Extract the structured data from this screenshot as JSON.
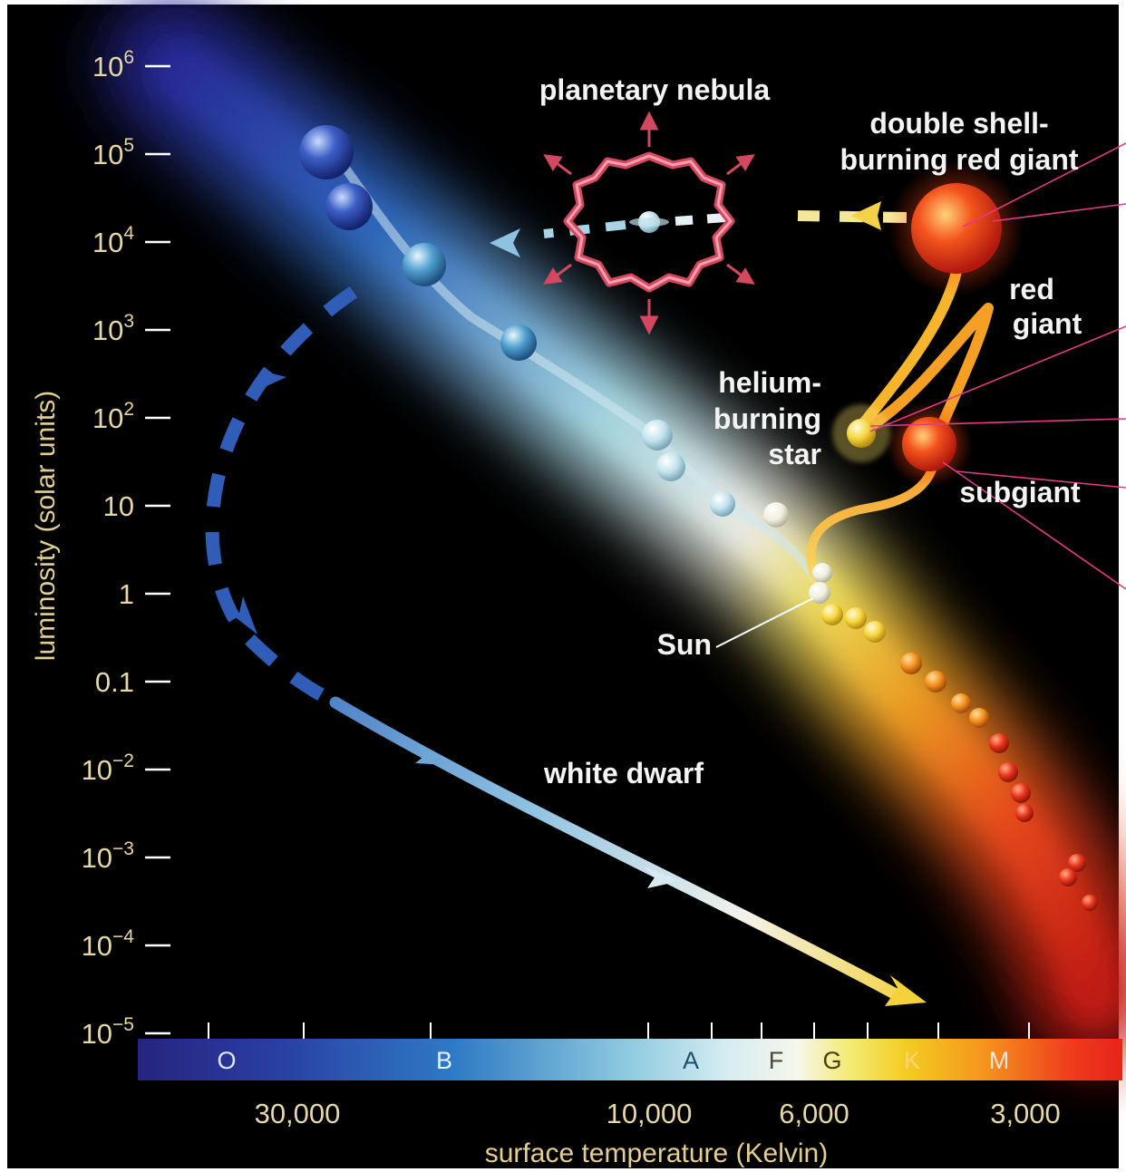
{
  "y_axis": {
    "title": "luminosity (solar units)",
    "ticks": [
      {
        "base": "10",
        "exp": "6"
      },
      {
        "base": "10",
        "exp": "5"
      },
      {
        "base": "10",
        "exp": "4"
      },
      {
        "base": "10",
        "exp": "3"
      },
      {
        "base": "10",
        "exp": "2"
      },
      {
        "base": "10",
        "exp": ""
      },
      {
        "base": "1",
        "exp": ""
      },
      {
        "base": "0.1",
        "exp": ""
      },
      {
        "base": "10",
        "exp": "−2"
      },
      {
        "base": "10",
        "exp": "−3"
      },
      {
        "base": "10",
        "exp": "−4"
      },
      {
        "base": "10",
        "exp": "−5"
      }
    ]
  },
  "x_axis": {
    "title": "surface temperature (Kelvin)",
    "ticks": [
      "30,000",
      "10,000",
      "6,000",
      "3,000"
    ]
  },
  "spectral_classes": [
    "O",
    "B",
    "A",
    "F",
    "G",
    "K",
    "M"
  ],
  "labels": {
    "planetary_nebula": "planetary nebula",
    "double_shell_line1": "double shell-",
    "double_shell_line2": "burning red giant",
    "red_giant_line1": "red",
    "red_giant_line2": "giant",
    "helium_line1": "helium-",
    "helium_line2": "burning",
    "helium_line3": "star",
    "subgiant": "subgiant",
    "sun": "Sun",
    "white_dwarf": "white dwarf"
  },
  "colors": {
    "background": "#000000",
    "axis_text": "#e7d7a6",
    "spectral_O": "#2a2a9a",
    "spectral_B": "#2f78c8",
    "spectral_A": "#bfe3ee",
    "spectral_F": "#f4f4e4",
    "spectral_G": "#f5e040",
    "spectral_K": "#f39a20",
    "spectral_M": "#ef2a1a"
  }
}
